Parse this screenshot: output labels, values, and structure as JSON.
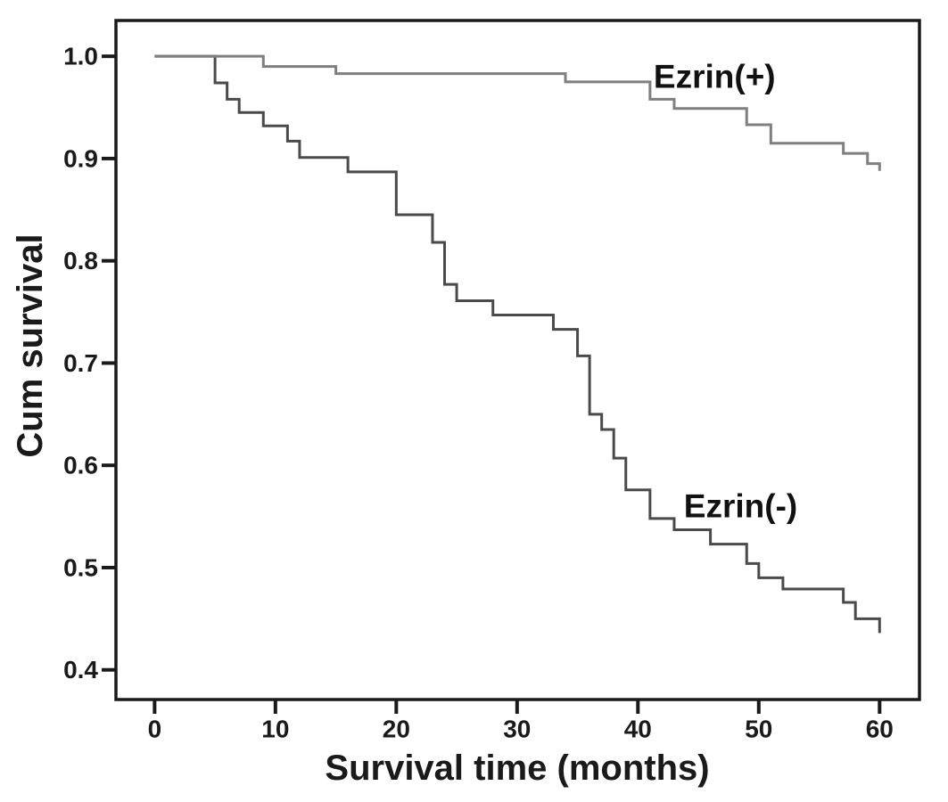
{
  "chart_data": {
    "type": "line",
    "subtype": "kaplan-meier-step",
    "title": "",
    "xlabel": "Survival time (months)",
    "ylabel": "Cum survival",
    "x_ticks": [
      0,
      10,
      20,
      30,
      40,
      50,
      60
    ],
    "x_tick_labels": [
      "0",
      "10",
      "20",
      "30",
      "40",
      "50",
      "60"
    ],
    "y_ticks": [
      1.0,
      0.9,
      0.8,
      0.7,
      0.6,
      0.5,
      0.4
    ],
    "y_tick_labels": [
      "1.0",
      "0.9",
      "0.8",
      "0.7",
      "0.6",
      "0.5",
      "0.4"
    ],
    "xlim": [
      -3.2,
      63.3
    ],
    "ylim": [
      0.371,
      1.035
    ],
    "grid": false,
    "legend_position": "inline-annotations",
    "frame_color": "#1a1a1a",
    "background": "#ffffff",
    "series": [
      {
        "name": "Ezrin(-)",
        "slug": "ezrin-minus",
        "color": "#4a4a4a",
        "points": [
          [
            0,
            1.0
          ],
          [
            5,
            0.974
          ],
          [
            6,
            0.958
          ],
          [
            7,
            0.945
          ],
          [
            9,
            0.932
          ],
          [
            11,
            0.917
          ],
          [
            12,
            0.901
          ],
          [
            16,
            0.887
          ],
          [
            20,
            0.845
          ],
          [
            23,
            0.818
          ],
          [
            24,
            0.777
          ],
          [
            25,
            0.761
          ],
          [
            28,
            0.747
          ],
          [
            33,
            0.733
          ],
          [
            35,
            0.707
          ],
          [
            36,
            0.65
          ],
          [
            37,
            0.635
          ],
          [
            38,
            0.607
          ],
          [
            39,
            0.576
          ],
          [
            41,
            0.548
          ],
          [
            43,
            0.537
          ],
          [
            46,
            0.523
          ],
          [
            49,
            0.504
          ],
          [
            50,
            0.49
          ],
          [
            52,
            0.479
          ],
          [
            57,
            0.466
          ],
          [
            58,
            0.45
          ],
          [
            60,
            0.436
          ]
        ]
      },
      {
        "name": "Ezrin(+)",
        "slug": "ezrin-plus",
        "color": "#7f7f7f",
        "points": [
          [
            0,
            1.0
          ],
          [
            9,
            0.99
          ],
          [
            15,
            0.983
          ],
          [
            34,
            0.975
          ],
          [
            41,
            0.958
          ],
          [
            43,
            0.949
          ],
          [
            49,
            0.933
          ],
          [
            51,
            0.915
          ],
          [
            57,
            0.905
          ],
          [
            59,
            0.895
          ],
          [
            60,
            0.888
          ]
        ]
      }
    ],
    "annotations": [
      {
        "text": "Ezrin(+)",
        "slug": "ezrin-plus",
        "x": 41.3,
        "y": 0.98,
        "anchor": "start"
      },
      {
        "text": "Ezrin(-)",
        "slug": "ezrin-minus",
        "x": 43.8,
        "y": 0.56,
        "anchor": "start"
      }
    ]
  }
}
